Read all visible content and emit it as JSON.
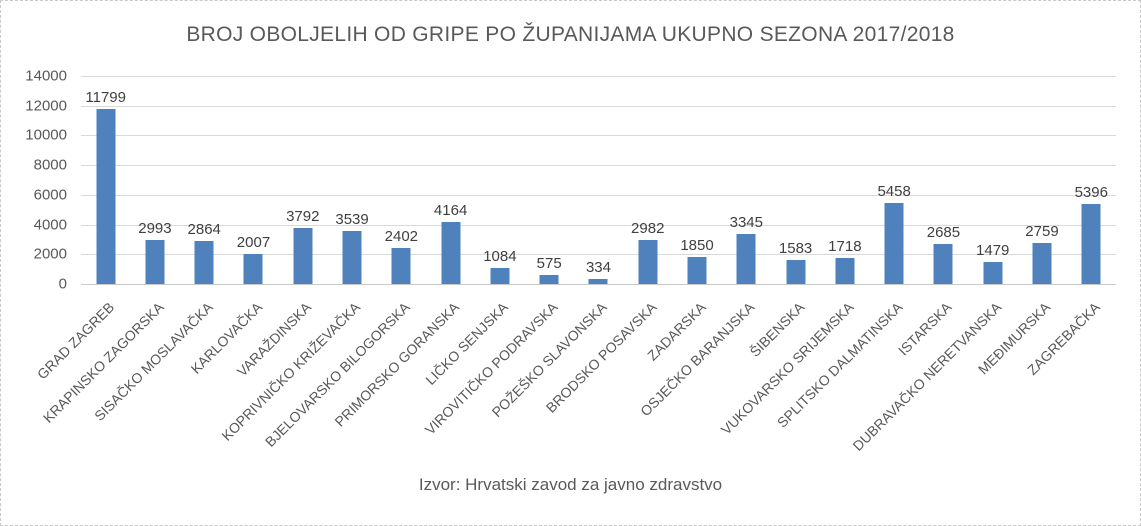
{
  "chart_data": {
    "type": "bar",
    "title": "BROJ OBOLJELIH OD GRIPE PO ŽUPANIJAMA UKUPNO SEZONA 2017/2018",
    "caption": "Izvor: Hrvatski zavod za javno zdravstvo",
    "categories": [
      "GRAD ZAGREB",
      "KRAPINSKO ZAGORSKA",
      "SISAČKO MOSLAVAČKA",
      "KARLOVAČKA",
      "VARAŽDINSKA",
      "KOPRIVNIČKO KRIŽEVAČKA",
      "BJELOVARSKO BILOGORSKA",
      "PRIMORSKO GORANSKA",
      "LIČKO SENJSKA",
      "VIROVITIČKO PODRAVSKA",
      "POŽEŠKO SLAVONSKA",
      "BRODSKO POSAVSKA",
      "ZADARSKA",
      "OSJEČKO BARANJSKA",
      "ŠIBENSKA",
      "VUKOVARSKO SRIJEMSKA",
      "SPLITSKO DALMATINSKA",
      "ISTARSKA",
      "DUBRAVAČKO NERETVANSKA",
      "MEĐIMURSKA",
      "ZAGREBAČKA"
    ],
    "values": [
      11799,
      2993,
      2864,
      2007,
      3792,
      3539,
      2402,
      4164,
      1084,
      575,
      334,
      2982,
      1850,
      3345,
      1583,
      1718,
      5458,
      2685,
      1479,
      2759,
      5396
    ],
    "data_labels_shown": true,
    "xlabel": "",
    "ylabel": "",
    "ylim": [
      0,
      14000
    ],
    "yticks": [
      0,
      2000,
      4000,
      6000,
      8000,
      10000,
      12000,
      14000
    ],
    "grid": true,
    "legend": "none",
    "x_label_rotation_deg": 45,
    "colors": {
      "bar": "#4f81bd",
      "gridline": "#d9d9d9",
      "axis_line": "#c9c9c9",
      "axis_text": "#595959",
      "title_text": "#595959",
      "value_label_text": "#404040",
      "frame_border": "#c9c9c9",
      "background": "#ffffff"
    }
  }
}
